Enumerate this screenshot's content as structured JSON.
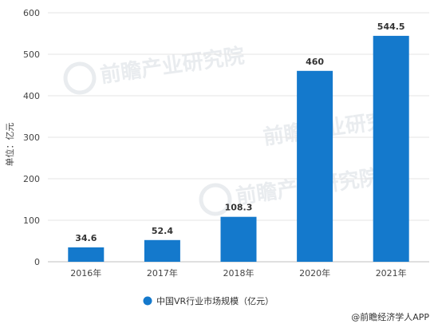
{
  "chart_data": {
    "type": "bar",
    "categories": [
      "2016年",
      "2017年",
      "2018年",
      "2020年",
      "2021年"
    ],
    "values": [
      34.6,
      52.4,
      108.3,
      460,
      544.5
    ],
    "value_labels": [
      "34.6",
      "52.4",
      "108.3",
      "460",
      "544.5"
    ],
    "ylabel": "单位：亿元",
    "ylim": [
      0,
      600
    ],
    "yticks": [
      0,
      100,
      200,
      300,
      400,
      500,
      600
    ],
    "grid": true,
    "legend_position": "bottom",
    "series": [
      {
        "name": "中国VR行业市场规模（亿元）",
        "values": [
          34.6,
          52.4,
          108.3,
          460,
          544.5
        ]
      }
    ],
    "bar_color": "#1479cc"
  },
  "legend": {
    "label": "中国VR行业市场规模（亿元）",
    "color": "#1479cc"
  },
  "source": {
    "label": "@前瞻经济学人APP"
  },
  "watermark": {
    "text": "前瞻产业研究院"
  }
}
